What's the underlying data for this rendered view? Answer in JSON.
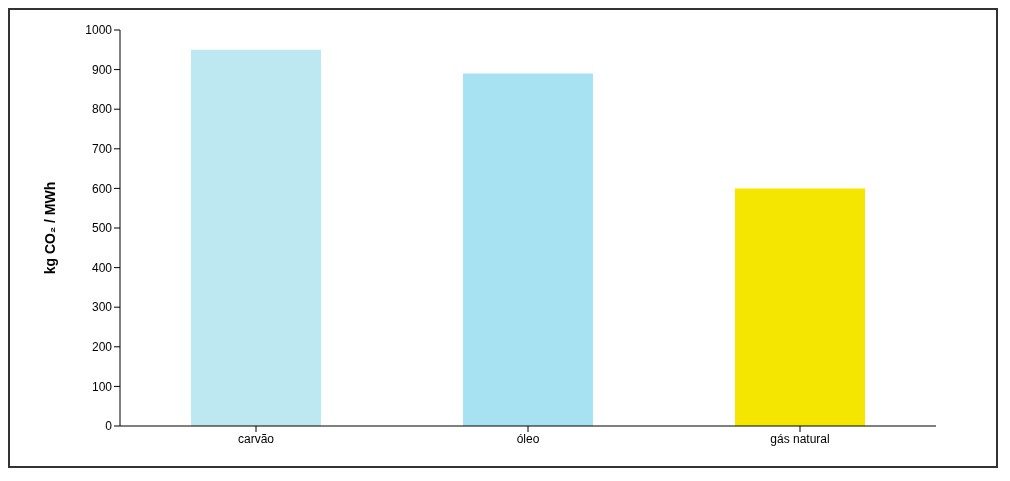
{
  "chart_data": {
    "type": "bar",
    "ylabel": "kg CO₂ / MWh",
    "categories": [
      "carvão",
      "óleo",
      "gás natural"
    ],
    "values": [
      950,
      890,
      600
    ],
    "colors": [
      "#bde8f2",
      "#a6e2f2",
      "#f5e600"
    ],
    "ylim": [
      0,
      1000
    ],
    "yticks": [
      0,
      100,
      200,
      300,
      400,
      500,
      600,
      700,
      800,
      900,
      1000
    ],
    "grid": false,
    "legend": false
  }
}
